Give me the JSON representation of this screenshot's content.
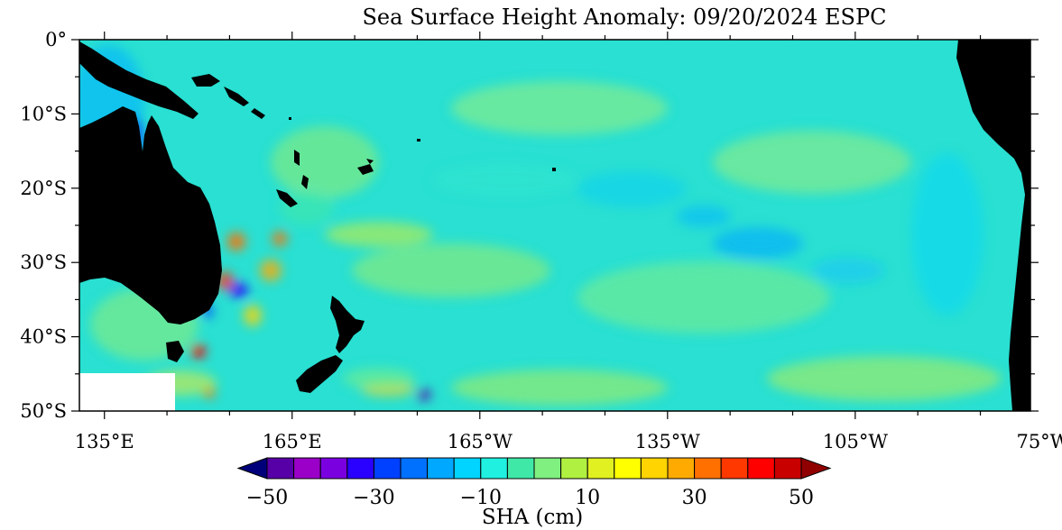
{
  "title": "Sea Surface Height Anomaly: 09/20/2024 ESPC",
  "map": {
    "lat_range": [
      -50,
      0
    ],
    "lon_range_east": [
      131,
      283
    ],
    "lat_tick_labels": [
      "0°",
      "10°S",
      "20°S",
      "30°S",
      "40°S",
      "50°S"
    ],
    "lon_tick_labels": [
      "135°E",
      "165°E",
      "165°W",
      "135°W",
      "105°W",
      "75°W"
    ],
    "land_color": "#000000",
    "ocean_base_color": "#29e0d2"
  },
  "colorbar": {
    "label": "SHA (cm)",
    "range": [
      -50,
      50
    ],
    "tick_labels": [
      "−50",
      "−30",
      "−10",
      "10",
      "30",
      "50"
    ],
    "colors": [
      "#5800a8",
      "#9a00c8",
      "#7a00e0",
      "#2a00ff",
      "#0040ff",
      "#0070ff",
      "#00a8ff",
      "#00d4ff",
      "#20f0e0",
      "#40e8a8",
      "#80f080",
      "#b0f040",
      "#e0f020",
      "#ffff00",
      "#ffd400",
      "#ffaa00",
      "#ff7000",
      "#ff3800",
      "#ff0000",
      "#c80000"
    ],
    "under_color": "#00007a",
    "over_color": "#900000",
    "extend": "both"
  }
}
